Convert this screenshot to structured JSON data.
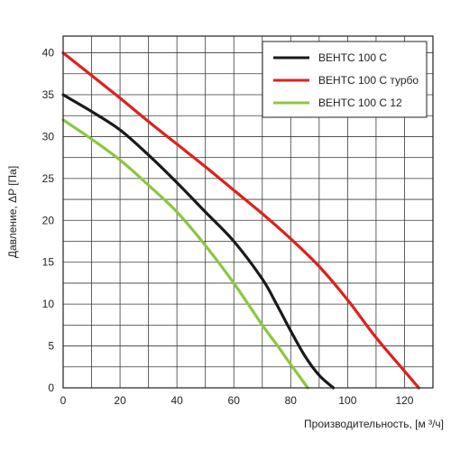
{
  "chart_data": {
    "type": "line",
    "title": "",
    "xlabel": "Производительность, [м ³/ч]",
    "ylabel": "Давление, ΔP [Па]",
    "xlim": [
      0,
      130
    ],
    "ylim": [
      0,
      42
    ],
    "x_ticks": [
      0,
      20,
      40,
      60,
      80,
      100,
      120
    ],
    "y_ticks": [
      0,
      5,
      10,
      15,
      20,
      25,
      30,
      35,
      40
    ],
    "x_grid_step": 10,
    "y_grid_step": 2.5,
    "grid": true,
    "legend_position": "top-right",
    "series": [
      {
        "name": "ВЕНТС 100 С",
        "color": "#1a1a1a",
        "points": [
          [
            0,
            35
          ],
          [
            5,
            34
          ],
          [
            10,
            33
          ],
          [
            20,
            30.8
          ],
          [
            30,
            27.8
          ],
          [
            40,
            24.5
          ],
          [
            50,
            21
          ],
          [
            60,
            17.5
          ],
          [
            70,
            13
          ],
          [
            75,
            10
          ],
          [
            80,
            6.8
          ],
          [
            85,
            3.8
          ],
          [
            90,
            1.5
          ],
          [
            95,
            0
          ]
        ]
      },
      {
        "name": "ВЕНТС 100 С турбо",
        "color": "#e0201c",
        "points": [
          [
            0,
            40
          ],
          [
            10,
            37.3
          ],
          [
            20,
            34.6
          ],
          [
            30,
            31.8
          ],
          [
            40,
            29.1
          ],
          [
            50,
            26.4
          ],
          [
            60,
            23.6
          ],
          [
            70,
            20.8
          ],
          [
            80,
            17.8
          ],
          [
            90,
            14.5
          ],
          [
            100,
            10.5
          ],
          [
            110,
            6
          ],
          [
            120,
            2
          ],
          [
            125,
            0
          ]
        ]
      },
      {
        "name": "ВЕНТС 100 С 12",
        "color": "#8cc63f",
        "points": [
          [
            0,
            32
          ],
          [
            10,
            29.7
          ],
          [
            20,
            27.2
          ],
          [
            30,
            24.2
          ],
          [
            40,
            21
          ],
          [
            50,
            17
          ],
          [
            60,
            12.5
          ],
          [
            70,
            7.5
          ],
          [
            75,
            5.2
          ],
          [
            80,
            2.8
          ],
          [
            86,
            0
          ]
        ]
      }
    ]
  }
}
